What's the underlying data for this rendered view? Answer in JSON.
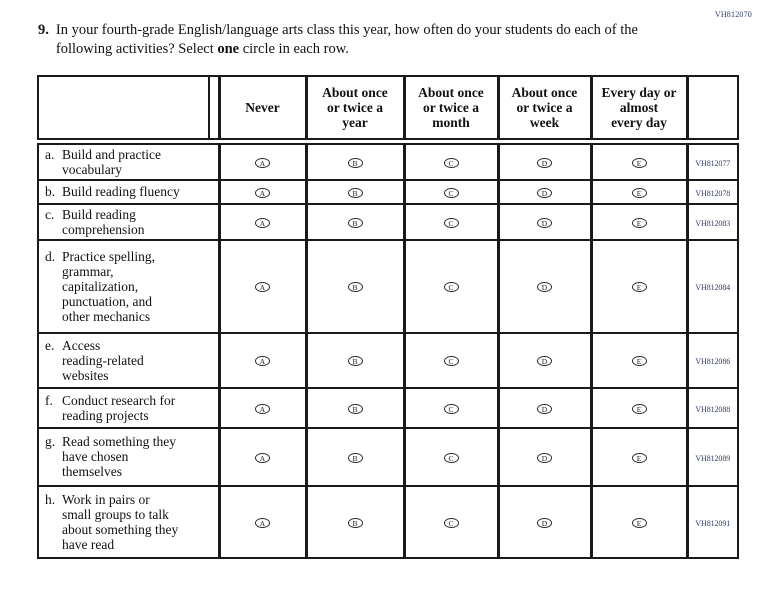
{
  "page": {
    "form_code": "VH812070",
    "question_number": "9.",
    "prompt_before_bold": "In your fourth-grade English/language arts class this year, how often do your students do each of the following activities? Select ",
    "prompt_bold": "one",
    "prompt_after_bold": " circle in each row."
  },
  "table": {
    "columns": [
      "Never",
      "About once\nor twice a\nyear",
      "About once\nor twice a\nmonth",
      "About once\nor twice a\nweek",
      "Every day or\nalmost\nevery day"
    ],
    "options": [
      "A",
      "B",
      "C",
      "D",
      "E"
    ],
    "rows": [
      {
        "letter": "a.",
        "label": "Build and practice\nvocabulary",
        "code": "VH812077"
      },
      {
        "letter": "b.",
        "label": "Build reading fluency",
        "code": "VH812078"
      },
      {
        "letter": "c.",
        "label": "Build reading\ncomprehension",
        "code": "VH812083"
      },
      {
        "letter": "d.",
        "label": "Practice spelling,\ngrammar,\ncapitalization,\npunctuation, and\nother mechanics",
        "code": "VH812084"
      },
      {
        "letter": "e.",
        "label": "Access\nreading-related\nwebsites",
        "code": "VH812086"
      },
      {
        "letter": "f.",
        "label": "Conduct research for\nreading projects",
        "code": "VH812088"
      },
      {
        "letter": "g.",
        "label": "Read something they\nhave chosen\nthemselves",
        "code": "VH812089"
      },
      {
        "letter": "h.",
        "label": "Work in pairs or\nsmall groups to talk\nabout something they\nhave read",
        "code": "VH812091"
      }
    ],
    "colors": {
      "code_text": "#2e3a6e",
      "border": "#1a1a1a"
    }
  }
}
